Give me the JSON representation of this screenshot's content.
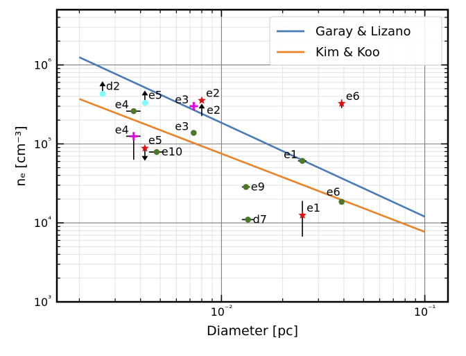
{
  "chart_data": {
    "type": "scatter",
    "xscale": "log",
    "yscale": "log",
    "xlim": [
      0.00155,
      0.13
    ],
    "ylim": [
      1000,
      5000000
    ],
    "grid": true,
    "xlabel": "Diameter [pc]",
    "ylabel": "nₑ [cm⁻³]",
    "x_ticks": [
      {
        "value": 0.01,
        "label": "10⁻²"
      },
      {
        "value": 0.1,
        "label": "10⁻¹"
      }
    ],
    "y_ticks": [
      {
        "value": 1000,
        "label": "10³"
      },
      {
        "value": 10000,
        "label": "10⁴"
      },
      {
        "value": 100000,
        "label": "10⁵"
      },
      {
        "value": 1000000,
        "label": "10⁶"
      }
    ],
    "legend": {
      "position": "top-right",
      "entries": [
        {
          "label": "Garay & Lizano",
          "color": "#4a7ab5"
        },
        {
          "label": "Kim & Koo",
          "color": "#e8832a"
        }
      ]
    },
    "lines": [
      {
        "name": "Garay & Lizano",
        "color": "#4a7ab5",
        "x": [
          0.002,
          0.1
        ],
        "y": [
          1250000,
          12000
        ]
      },
      {
        "name": "Kim & Koo",
        "color": "#e8832a",
        "x": [
          0.002,
          0.1
        ],
        "y": [
          370000,
          7700
        ]
      }
    ],
    "points": [
      {
        "label": "d2",
        "x": 0.0026,
        "y": 430000,
        "color": "#7fffff",
        "marker": "circle",
        "limit": "lower",
        "label_side": "right"
      },
      {
        "label": "e5",
        "x": 0.0042,
        "y": 330000,
        "color": "#7fffff",
        "marker": "circle",
        "limit": "lower",
        "label_side": "right"
      },
      {
        "label": "e4",
        "x": 0.0037,
        "y": 260000,
        "color": "#4a7a28",
        "marker": "circle",
        "xerr": 0.0003,
        "label_side": "left"
      },
      {
        "label": "e4",
        "x": 0.0037,
        "y": 125000,
        "color": "#e000e0",
        "marker": "plus",
        "xerr": 0.0003,
        "yerr_down": 62000,
        "label_side": "left"
      },
      {
        "label": "e5",
        "x": 0.0042,
        "y": 88000,
        "color": "#dd1111",
        "marker": "star",
        "limit": "upper",
        "label_side": "right"
      },
      {
        "label": "e10",
        "x": 0.0048,
        "y": 79000,
        "color": "#4a7a28",
        "marker": "circle",
        "xerr": 0.0004,
        "label_side": "right"
      },
      {
        "label": "e3",
        "x": 0.0073,
        "y": 300000,
        "color": "#e000e0",
        "marker": "plus",
        "label_side": "left"
      },
      {
        "label": "e3",
        "x": 0.0073,
        "y": 138000,
        "color": "#4a7a28",
        "marker": "circle",
        "label_side": "left"
      },
      {
        "label": "e2",
        "x": 0.008,
        "y": 355000,
        "color": "#dd1111",
        "marker": "star",
        "label_side": "right"
      },
      {
        "label": "e2",
        "x": 0.008,
        "y": 265000,
        "color": "#000000",
        "marker": "arrow-up",
        "label_side": "right"
      },
      {
        "label": "e1",
        "x": 0.025,
        "y": 61000,
        "color": "#4a7a28",
        "marker": "circle",
        "xerr": 0.0012,
        "label_side": "left"
      },
      {
        "label": "e9",
        "x": 0.0132,
        "y": 28500,
        "color": "#4a7a28",
        "marker": "circle",
        "xerr": 0.0006,
        "label_side": "right"
      },
      {
        "label": "d7",
        "x": 0.0135,
        "y": 11000,
        "color": "#4a7a28",
        "marker": "circle",
        "xerr": 0.0009,
        "label_side": "right"
      },
      {
        "label": "e6",
        "x": 0.039,
        "y": 325000,
        "color": "#dd1111",
        "marker": "star",
        "yerr": 40000,
        "label_side": "right"
      },
      {
        "label": "e6",
        "x": 0.039,
        "y": 18500,
        "color": "#4a7a28",
        "marker": "circle",
        "label_side": "left-above"
      },
      {
        "label": "e1",
        "x": 0.025,
        "y": 12500,
        "color": "#dd1111",
        "marker": "star",
        "yerr_up": 6500,
        "yerr_down": 5800,
        "label_side": "right"
      }
    ]
  }
}
